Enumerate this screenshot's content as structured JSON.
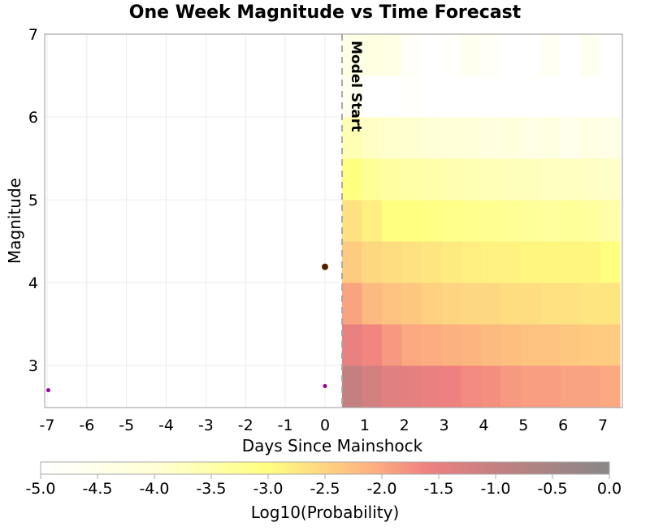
{
  "chart_data": {
    "type": "heatmap",
    "title": "One Week Magnitude vs Time Forecast",
    "xlabel": "Days Since Mainshock",
    "ylabel": "Magnitude",
    "xlim": [
      -7.06,
      7.49
    ],
    "ylim": [
      2.5,
      7
    ],
    "xticks": [
      "-7",
      "-6",
      "-5",
      "-4",
      "-3",
      "-2",
      "-1",
      "0",
      "1",
      "2",
      "3",
      "4",
      "5",
      "6",
      "7"
    ],
    "yticks": [
      "3",
      "4",
      "5",
      "6",
      "7"
    ],
    "grid": true,
    "model_start": {
      "x": 0.43,
      "label": "Model Start"
    },
    "heatmap": {
      "x_start": 0.43,
      "x_step": 0.5,
      "mag_bins": [
        2.5,
        3.0,
        3.5,
        4.0,
        4.5,
        5.0,
        5.5,
        6.0,
        6.5
      ],
      "mag_step": 0.5,
      "log10_probability": [
        [
          -1.0,
          -1.2,
          -1.4,
          -1.45,
          -1.55,
          -1.6,
          -1.7,
          -1.75,
          -1.85,
          -1.9,
          -1.9,
          -1.95,
          -1.95,
          -2.0
        ],
        [
          -1.5,
          -1.65,
          -1.85,
          -2.0,
          -2.05,
          -2.1,
          -2.15,
          -2.2,
          -2.25,
          -2.3,
          -2.3,
          -2.35,
          -2.4,
          -2.4
        ],
        [
          -1.95,
          -2.2,
          -2.3,
          -2.35,
          -2.45,
          -2.5,
          -2.55,
          -2.55,
          -2.6,
          -2.6,
          -2.65,
          -2.65,
          -2.7,
          -2.7
        ],
        [
          -2.4,
          -2.55,
          -2.6,
          -2.65,
          -2.7,
          -2.75,
          -2.8,
          -2.85,
          -2.85,
          -2.9,
          -2.9,
          -2.9,
          -2.9,
          -3.0
        ],
        [
          -2.65,
          -2.8,
          -3.0,
          -3.0,
          -3.05,
          -3.1,
          -3.15,
          -3.2,
          -3.25,
          -3.3,
          -3.35,
          -3.3,
          -3.35,
          -3.45
        ],
        [
          -3.0,
          -3.3,
          -3.4,
          -3.45,
          -3.5,
          -3.55,
          -3.6,
          -3.65,
          -3.7,
          -3.7,
          -3.75,
          -3.75,
          -3.8,
          -3.85
        ],
        [
          -3.6,
          -3.8,
          -3.9,
          -3.95,
          -4.0,
          -4.05,
          -4.1,
          -4.3,
          -4.2,
          -4.4,
          -4.3,
          -4.5,
          -4.3,
          -4.4
        ],
        [
          -4.6,
          -5.0,
          -5.0,
          -4.9,
          -5.0,
          -5.0,
          -5.0,
          -5.0,
          -5.0,
          -5.0,
          -5.0,
          -5.0,
          -5.0,
          -5.0
        ],
        [
          -4.4,
          -4.3,
          -4.4,
          -4.8,
          -5.0,
          -4.9,
          -4.6,
          -4.8,
          -5.0,
          -5.0,
          -4.7,
          -5.0,
          -4.6,
          -5.0
        ]
      ]
    },
    "events": [
      {
        "x": -6.97,
        "y": 2.7,
        "color": "#990099",
        "size": "small"
      },
      {
        "x": 0.0,
        "y": 2.75,
        "color": "#990099",
        "size": "small"
      },
      {
        "x": 0.0,
        "y": 4.19,
        "color": "#552200",
        "size": "large"
      }
    ],
    "colorbar": {
      "label": "Log10(Probability)",
      "range": [
        -5.0,
        0.0
      ],
      "ticks": [
        "-5.0",
        "-4.5",
        "-4.0",
        "-3.5",
        "-3.0",
        "-2.5",
        "-2.0",
        "-1.5",
        "-1.0",
        "-0.5",
        "0.0"
      ],
      "colormap": [
        {
          "v": -5.0,
          "c": "#ffffff"
        },
        {
          "v": -4.0,
          "c": "#ffffd6"
        },
        {
          "v": -3.0,
          "c": "#ffff80"
        },
        {
          "v": -2.5,
          "c": "#fed480"
        },
        {
          "v": -2.0,
          "c": "#fca880"
        },
        {
          "v": -1.6,
          "c": "#ef8080"
        },
        {
          "v": -1.0,
          "c": "#c48080"
        },
        {
          "v": 0.0,
          "c": "#888888"
        }
      ]
    }
  }
}
